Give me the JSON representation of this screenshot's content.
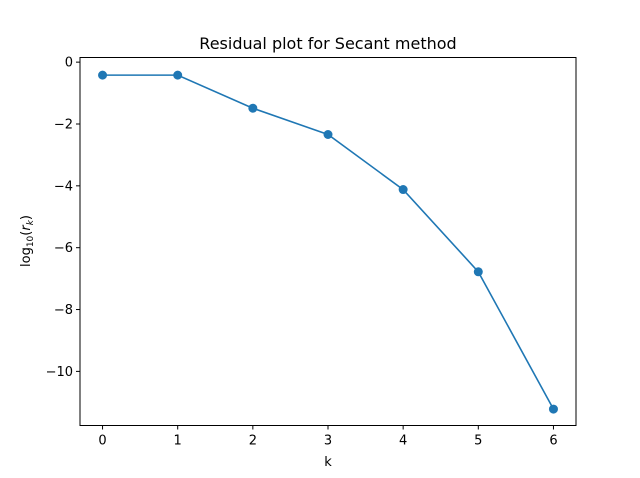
{
  "chart_data": {
    "type": "line",
    "title": "Residual plot for Secant method",
    "xlabel": "k",
    "ylabel": "log10(rk)",
    "ylabel_parts": {
      "base": "log",
      "sub": "10",
      "open": "(",
      "var": "r",
      "var_sub": "k",
      "close": ")"
    },
    "x": [
      0,
      1,
      2,
      3,
      4,
      5,
      6
    ],
    "series": [
      {
        "values": [
          -0.42,
          -0.42,
          -1.49,
          -2.34,
          -4.12,
          -6.78,
          -11.22
        ],
        "color": "#1f77b4",
        "marker": "circle"
      }
    ],
    "xlim": [
      -0.3,
      6.3
    ],
    "ylim": [
      -11.75,
      0.15
    ],
    "xticks": [
      0,
      1,
      2,
      3,
      4,
      5,
      6
    ],
    "yticks": [
      0,
      -2,
      -4,
      -6,
      -8,
      -10
    ],
    "xtick_labels": [
      "0",
      "1",
      "2",
      "3",
      "4",
      "5",
      "6"
    ],
    "ytick_labels": [
      "0",
      "−2",
      "−4",
      "−6",
      "−8",
      "−10"
    ],
    "grid": false,
    "legend": false
  }
}
